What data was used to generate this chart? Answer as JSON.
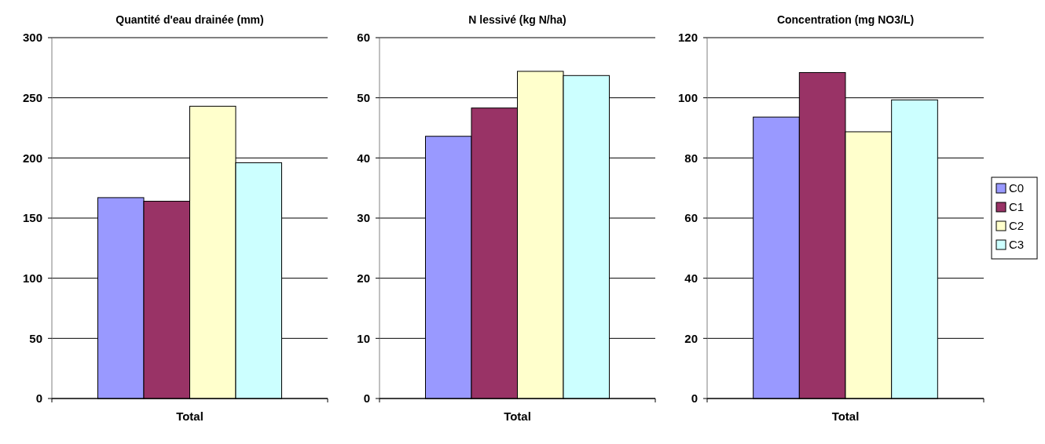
{
  "chart_data": [
    {
      "type": "bar",
      "title": "Quantité d'eau drainée  (mm)",
      "categories": [
        "Total"
      ],
      "series": [
        {
          "color": "#9999ff",
          "values": [
            167
          ]
        },
        {
          "color": "#993366",
          "values": [
            164
          ]
        },
        {
          "color": "#ffffcc",
          "values": [
            243
          ]
        },
        {
          "color": "#ccffff",
          "values": [
            196
          ]
        }
      ],
      "ylim": [
        0,
        300
      ],
      "yticks": [
        0,
        50,
        100,
        150,
        200,
        250,
        300
      ],
      "grid": "y",
      "legend": false
    },
    {
      "type": "bar",
      "title": "N lessivé   (kg N/ha)",
      "categories": [
        "Total"
      ],
      "series": [
        {
          "color": "#9999ff",
          "values": [
            43.6
          ]
        },
        {
          "color": "#993366",
          "values": [
            48.3
          ]
        },
        {
          "color": "#ffffcc",
          "values": [
            54.4
          ]
        },
        {
          "color": "#ccffff",
          "values": [
            53.7
          ]
        }
      ],
      "ylim": [
        0,
        60
      ],
      "yticks": [
        0,
        10,
        20,
        30,
        40,
        50,
        60
      ],
      "grid": "y",
      "legend": false
    },
    {
      "type": "bar",
      "title": "Concentration  (mg NO3/L)",
      "categories": [
        "Total"
      ],
      "series": [
        {
          "name": "C0",
          "color": "#9999ff",
          "values": [
            93.6
          ]
        },
        {
          "name": "C1",
          "color": "#993366",
          "values": [
            108.4
          ]
        },
        {
          "name": "C2",
          "color": "#ffffcc",
          "values": [
            88.7
          ]
        },
        {
          "name": "C3",
          "color": "#ccffff",
          "values": [
            99.3
          ]
        }
      ],
      "ylim": [
        0,
        120
      ],
      "yticks": [
        0,
        20,
        40,
        60,
        80,
        100,
        120
      ],
      "grid": "y",
      "legend": "right"
    }
  ]
}
